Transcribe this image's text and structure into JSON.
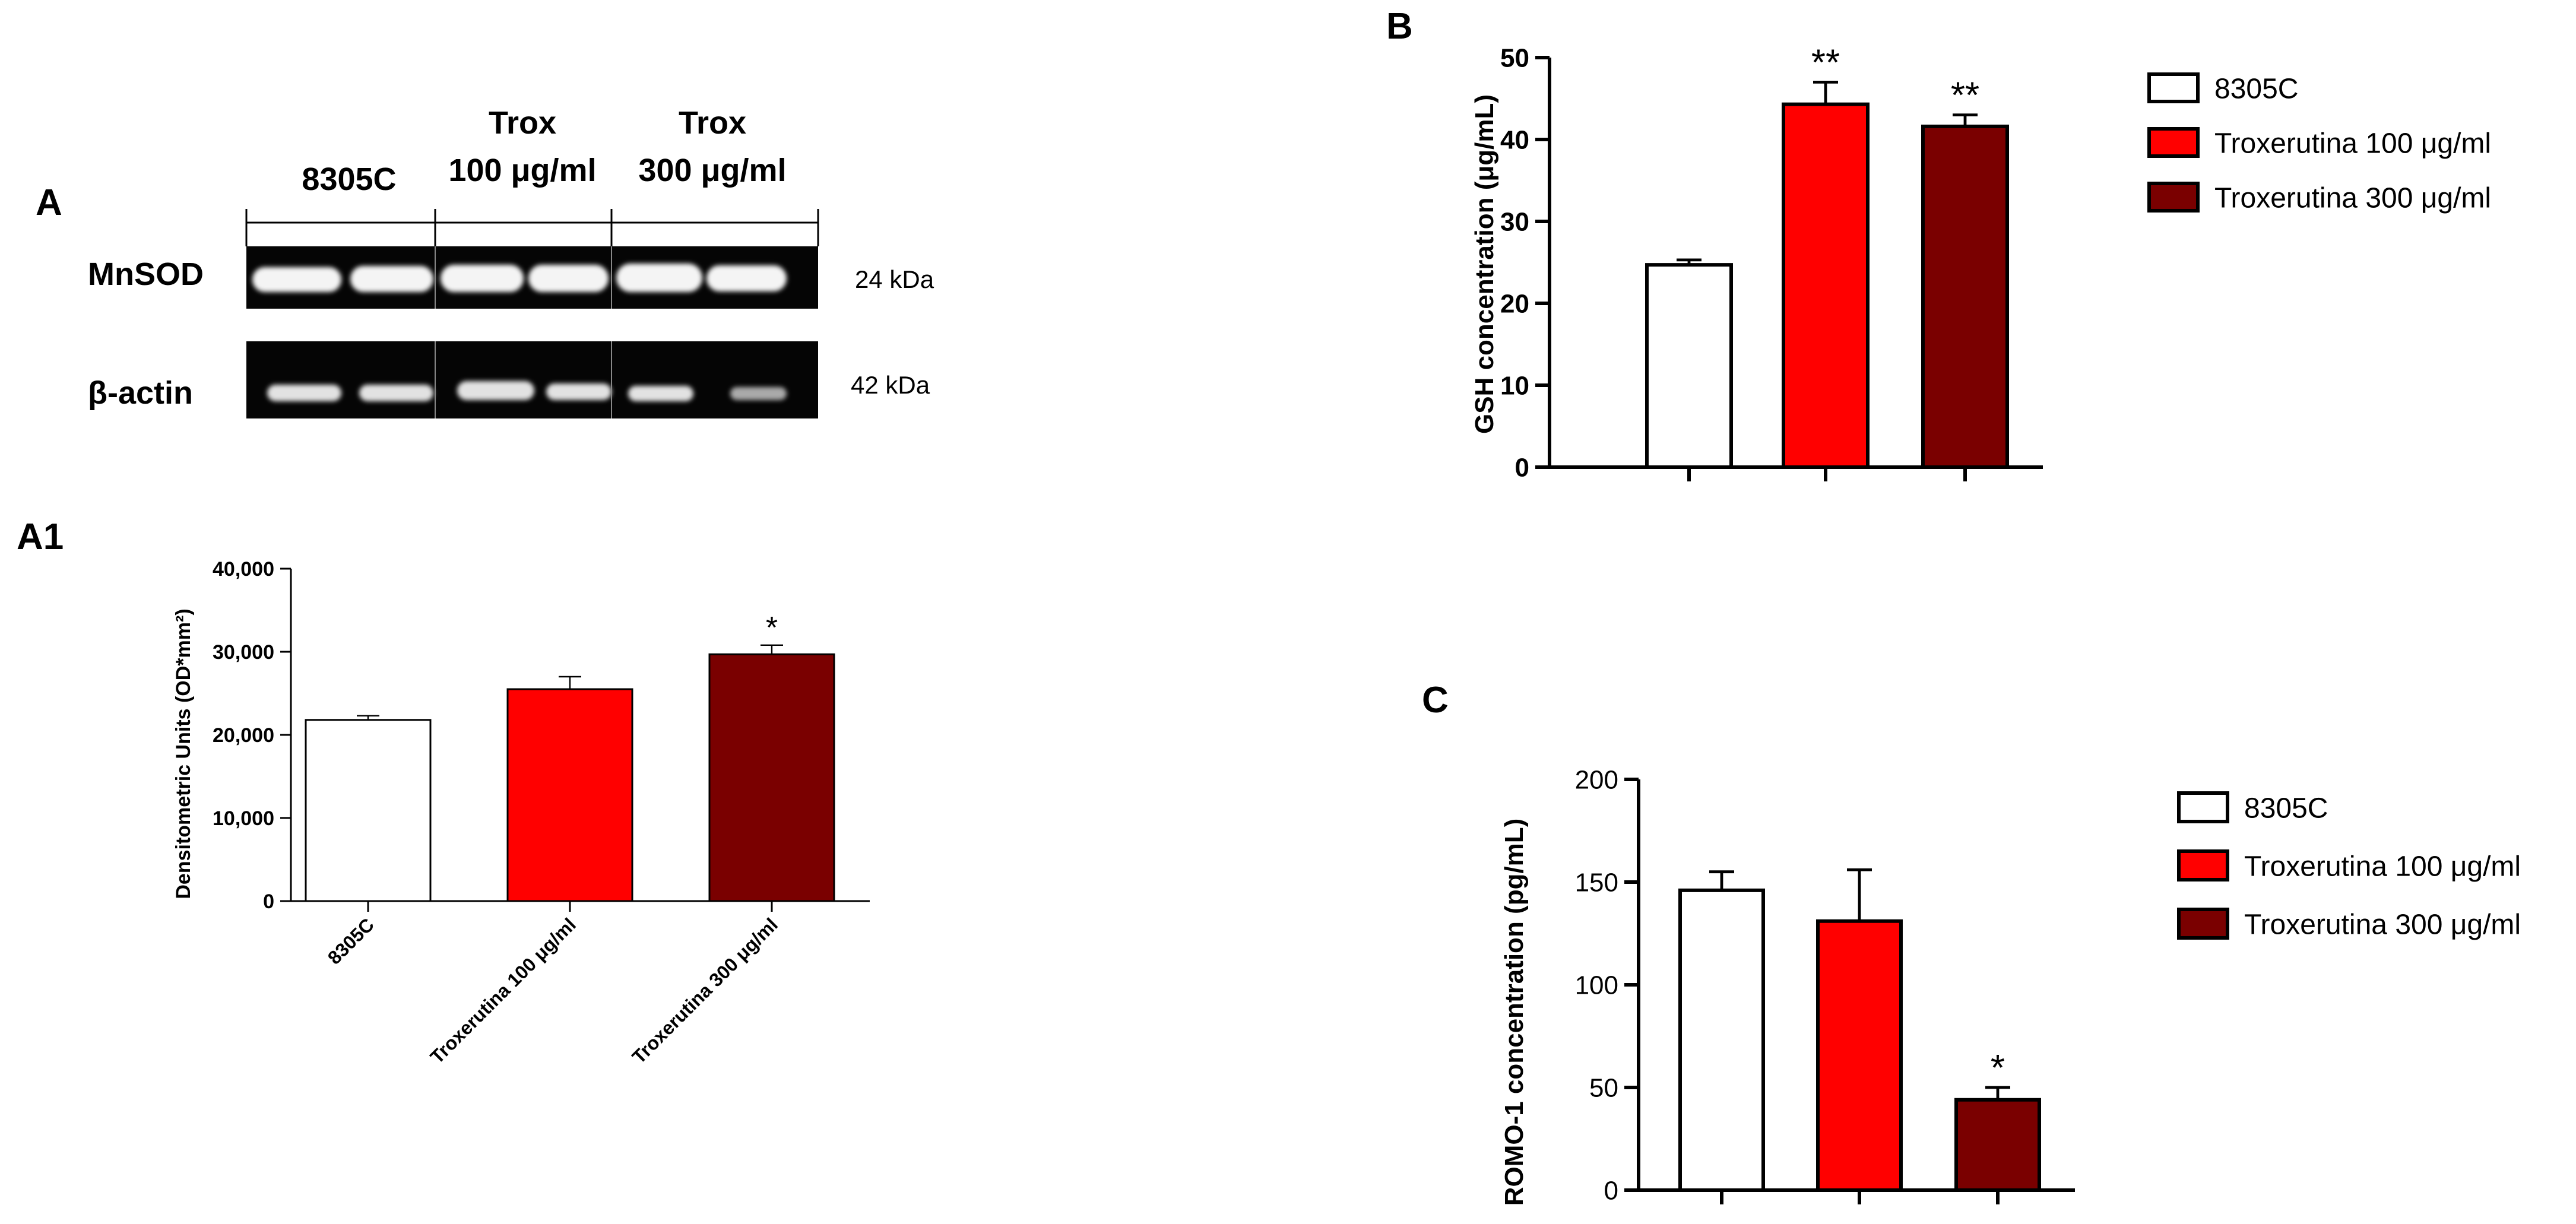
{
  "colors": {
    "control": "#ffffff",
    "trox100": "#ff0000",
    "trox300": "#7a0000",
    "ink": "#000000",
    "blot_bg": "#050505",
    "band": "#f4f4f4"
  },
  "panel_a": {
    "letter": "A",
    "column_labels": [
      {
        "line1": "",
        "line2": "8305C"
      },
      {
        "line1": "Trox",
        "line2": "100 μg/ml"
      },
      {
        "line1": "Trox",
        "line2": "300 μg/ml"
      }
    ],
    "rows": [
      {
        "name": "MnSOD",
        "size": "24 kDa"
      },
      {
        "name": "β-actin",
        "size": "42 kDa"
      }
    ]
  },
  "legend": {
    "items": [
      "8305C",
      "Troxerutina 100 μg/ml",
      "Troxerutina 300 μg/ml"
    ]
  },
  "chart_data": [
    {
      "id": "A1",
      "type": "bar",
      "letter": "A1",
      "categories": [
        "8305C",
        "Troxerutina 100 μg/ml",
        "Troxerutina 300 μg/ml"
      ],
      "values": [
        21800,
        25500,
        29700
      ],
      "errors": [
        500,
        1500,
        1100
      ],
      "significance": [
        "",
        "",
        "*"
      ],
      "ylabel": "Densitometric Units (OD*mm²)",
      "xlabel": "",
      "ylim": [
        0,
        40000
      ],
      "yticks": [
        0,
        10000,
        20000,
        30000,
        40000
      ],
      "ytick_labels": [
        "0",
        "10,000",
        "20,000",
        "30,000",
        "40,000"
      ]
    },
    {
      "id": "B",
      "type": "bar",
      "letter": "B",
      "categories": [
        "8305C",
        "Troxerutina 100 μg/ml",
        "Troxerutina 300 μg/ml"
      ],
      "values": [
        24.7,
        44.3,
        41.6
      ],
      "errors": [
        0.6,
        2.7,
        1.4
      ],
      "significance": [
        "",
        "**",
        "**"
      ],
      "ylabel": "GSH concentration (μg/mL)",
      "xlabel": "",
      "ylim": [
        0,
        50
      ],
      "yticks": [
        0,
        10,
        20,
        30,
        40,
        50
      ],
      "ytick_labels": [
        "0",
        "10",
        "20",
        "30",
        "40",
        "50"
      ]
    },
    {
      "id": "C",
      "type": "bar",
      "letter": "C",
      "categories": [
        "8305C",
        "Troxerutina 100 μg/ml",
        "Troxerutina 300 μg/ml"
      ],
      "values": [
        146,
        131,
        44
      ],
      "errors": [
        9,
        25,
        6
      ],
      "significance": [
        "",
        "",
        "*"
      ],
      "ylabel": "ROMO-1 concentration (pg/mL)",
      "xlabel": "",
      "ylim": [
        0,
        200
      ],
      "yticks": [
        0,
        50,
        100,
        150,
        200
      ],
      "ytick_labels": [
        "0",
        "50",
        "100",
        "150",
        "200"
      ]
    }
  ]
}
